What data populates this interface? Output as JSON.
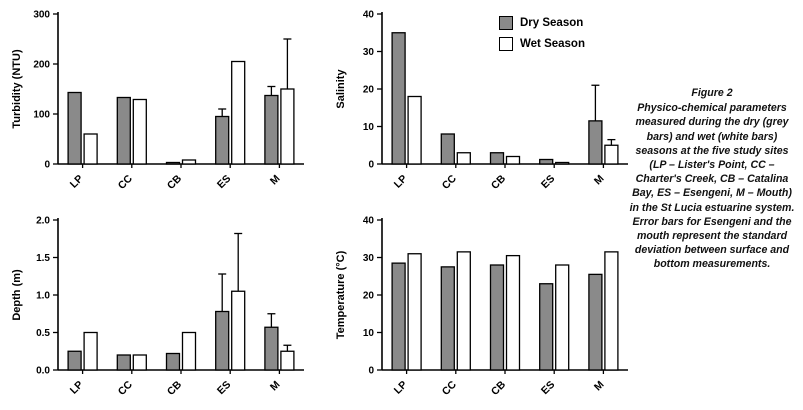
{
  "figure": {
    "legend": {
      "items": [
        {
          "label": "Dry Season",
          "color": "#8a8a8a"
        },
        {
          "label": "Wet Season",
          "color": "#ffffff"
        }
      ]
    },
    "caption": {
      "title": "Figure 2",
      "body": "Physico-chemical parameters measured during the dry (grey bars) and wet (white bars) seasons at the five study sites (LP – Lister's Point, CC – Charter's Creek, CB – Catalina Bay, ES – Esengeni, M – Mouth) in the St Lucia estuarine system. Error bars for Esengeni and the mouth represent the standard deviation between surface and bottom measurements."
    }
  },
  "chart_data": [
    {
      "type": "bar",
      "name": "turbidity",
      "ylabel": "Turbidity (NTU)",
      "ylim": [
        0,
        300
      ],
      "yticks": [
        0,
        100,
        200,
        300
      ],
      "ytick_labels": [
        "0",
        "100",
        "200",
        "300"
      ],
      "categories": [
        "LP",
        "CC",
        "CB",
        "ES",
        "M"
      ],
      "legend_position": "none",
      "grid": false,
      "series": [
        {
          "name": "Dry Season",
          "color": "#8a8a8a",
          "values": [
            143,
            133,
            3,
            95,
            137
          ],
          "errors": [
            0,
            0,
            0,
            15,
            18
          ]
        },
        {
          "name": "Wet Season",
          "color": "#ffffff",
          "values": [
            60,
            129,
            8,
            205,
            150
          ],
          "errors": [
            0,
            0,
            0,
            0,
            100
          ]
        }
      ]
    },
    {
      "type": "bar",
      "name": "salinity",
      "ylabel": "Salinity",
      "ylim": [
        0,
        40
      ],
      "yticks": [
        0,
        10,
        20,
        30,
        40
      ],
      "ytick_labels": [
        "0",
        "10",
        "20",
        "30",
        "40"
      ],
      "categories": [
        "LP",
        "CC",
        "CB",
        "ES",
        "M"
      ],
      "legend_position": "top-right",
      "grid": false,
      "series": [
        {
          "name": "Dry Season",
          "color": "#8a8a8a",
          "values": [
            35,
            8,
            3,
            1.2,
            11.5
          ],
          "errors": [
            0,
            0,
            0,
            0,
            9.5
          ]
        },
        {
          "name": "Wet Season",
          "color": "#ffffff",
          "values": [
            18,
            3,
            2,
            0.4,
            5
          ],
          "errors": [
            0,
            0,
            0,
            0,
            1.5
          ]
        }
      ]
    },
    {
      "type": "bar",
      "name": "depth",
      "ylabel": "Depth (m)",
      "ylim": [
        0,
        2.0
      ],
      "yticks": [
        0,
        0.5,
        1.0,
        1.5,
        2.0
      ],
      "ytick_labels": [
        "0.0",
        "0.5",
        "1.0",
        "1.5",
        "2.0"
      ],
      "categories": [
        "LP",
        "CC",
        "CB",
        "ES",
        "M"
      ],
      "legend_position": "none",
      "grid": false,
      "series": [
        {
          "name": "Dry Season",
          "color": "#8a8a8a",
          "values": [
            0.25,
            0.2,
            0.22,
            0.78,
            0.57
          ],
          "errors": [
            0,
            0,
            0,
            0.5,
            0.18
          ]
        },
        {
          "name": "Wet Season",
          "color": "#ffffff",
          "values": [
            0.5,
            0.2,
            0.5,
            1.05,
            0.25
          ],
          "errors": [
            0,
            0,
            0,
            0.77,
            0.08
          ]
        }
      ]
    },
    {
      "type": "bar",
      "name": "temperature",
      "ylabel": "Temperature (°C)",
      "ylim": [
        0,
        40
      ],
      "yticks": [
        0,
        10,
        20,
        30,
        40
      ],
      "ytick_labels": [
        "0",
        "10",
        "20",
        "30",
        "40"
      ],
      "categories": [
        "LP",
        "CC",
        "CB",
        "ES",
        "M"
      ],
      "legend_position": "none",
      "grid": false,
      "series": [
        {
          "name": "Dry Season",
          "color": "#8a8a8a",
          "values": [
            28.5,
            27.5,
            28,
            23,
            25.5
          ],
          "errors": [
            0,
            0,
            0,
            0,
            0
          ]
        },
        {
          "name": "Wet Season",
          "color": "#ffffff",
          "values": [
            31,
            31.5,
            30.5,
            28,
            31.5
          ],
          "errors": [
            0,
            0,
            0,
            0,
            0
          ]
        }
      ]
    }
  ]
}
